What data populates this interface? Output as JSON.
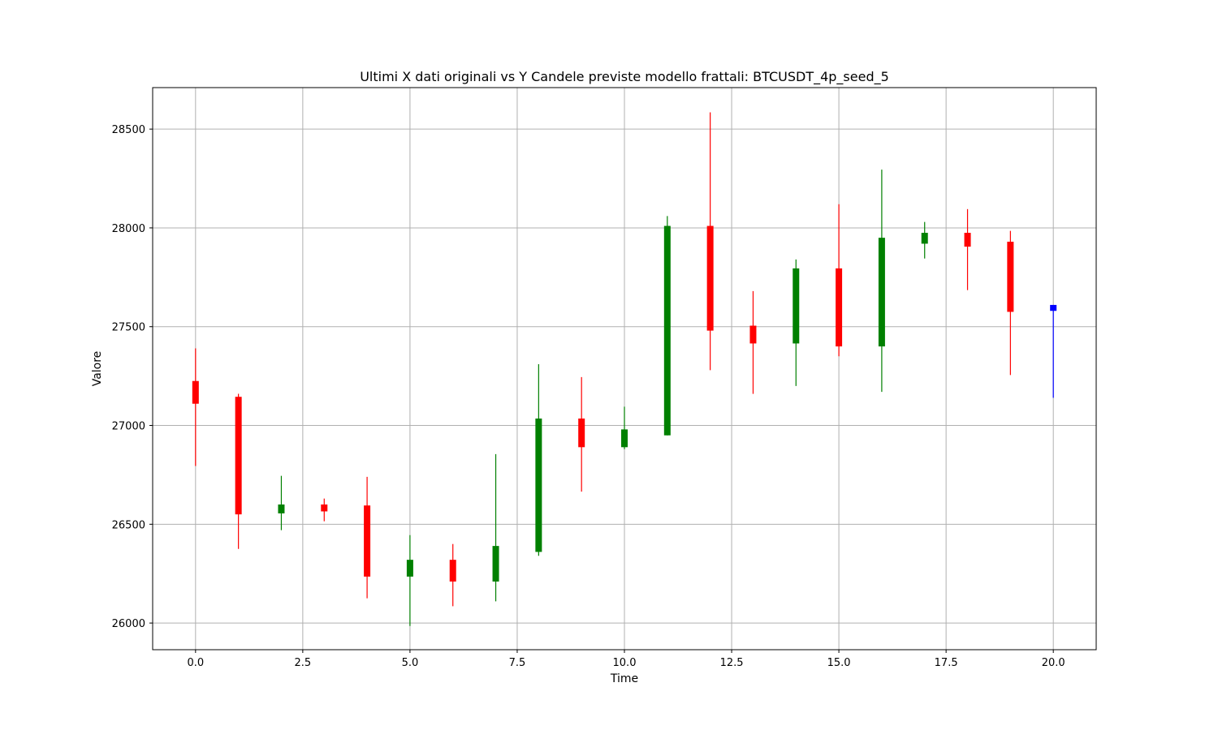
{
  "chart_data": {
    "type": "candlestick",
    "title": "Ultimi X dati originali vs Y Candele previste modello frattali: BTCUSDT_4p_seed_5",
    "xlabel": "Time",
    "ylabel": "Valore",
    "xlim": [
      -1.0,
      21.0
    ],
    "ylim": [
      25865,
      28710
    ],
    "x_ticks": [
      0.0,
      2.5,
      5.0,
      7.5,
      10.0,
      12.5,
      15.0,
      17.5,
      20.0
    ],
    "x_tick_labels": [
      "0.0",
      "2.5",
      "5.0",
      "7.5",
      "10.0",
      "12.5",
      "15.0",
      "17.5",
      "20.0"
    ],
    "y_ticks": [
      26000,
      26500,
      27000,
      27500,
      28000,
      28500
    ],
    "y_tick_labels": [
      "26000",
      "26500",
      "27000",
      "27500",
      "28000",
      "28500"
    ],
    "grid": true,
    "colors": {
      "up": "#008000",
      "down": "#ff0000",
      "forecast": "#0000ff",
      "grid": "#b0b0b0"
    },
    "candles": [
      {
        "x": 0,
        "open": 27225,
        "high": 27390,
        "low": 26795,
        "close": 27110,
        "kind": "down"
      },
      {
        "x": 1,
        "open": 27145,
        "high": 27160,
        "low": 26375,
        "close": 26550,
        "kind": "down"
      },
      {
        "x": 2,
        "open": 26555,
        "high": 26745,
        "low": 26470,
        "close": 26600,
        "kind": "up"
      },
      {
        "x": 3,
        "open": 26600,
        "high": 26630,
        "low": 26515,
        "close": 26565,
        "kind": "down"
      },
      {
        "x": 4,
        "open": 26595,
        "high": 26740,
        "low": 26125,
        "close": 26235,
        "kind": "down"
      },
      {
        "x": 5,
        "open": 26235,
        "high": 26445,
        "low": 25985,
        "close": 26320,
        "kind": "up"
      },
      {
        "x": 6,
        "open": 26320,
        "high": 26400,
        "low": 26085,
        "close": 26210,
        "kind": "down"
      },
      {
        "x": 7,
        "open": 26210,
        "high": 26855,
        "low": 26110,
        "close": 26390,
        "kind": "up"
      },
      {
        "x": 8,
        "open": 26360,
        "high": 27310,
        "low": 26340,
        "close": 27035,
        "kind": "up"
      },
      {
        "x": 9,
        "open": 27035,
        "high": 27245,
        "low": 26665,
        "close": 26890,
        "kind": "down"
      },
      {
        "x": 10,
        "open": 26890,
        "high": 27095,
        "low": 26880,
        "close": 26980,
        "kind": "up"
      },
      {
        "x": 11,
        "open": 26950,
        "high": 28060,
        "low": 26950,
        "close": 28010,
        "kind": "up"
      },
      {
        "x": 12,
        "open": 28010,
        "high": 28585,
        "low": 27280,
        "close": 27480,
        "kind": "down"
      },
      {
        "x": 13,
        "open": 27505,
        "high": 27680,
        "low": 27160,
        "close": 27415,
        "kind": "down"
      },
      {
        "x": 14,
        "open": 27415,
        "high": 27840,
        "low": 27200,
        "close": 27795,
        "kind": "up"
      },
      {
        "x": 15,
        "open": 27795,
        "high": 28120,
        "low": 27350,
        "close": 27400,
        "kind": "down"
      },
      {
        "x": 16,
        "open": 27400,
        "high": 28295,
        "low": 27170,
        "close": 27950,
        "kind": "up"
      },
      {
        "x": 17,
        "open": 27920,
        "high": 28030,
        "low": 27845,
        "close": 27975,
        "kind": "up"
      },
      {
        "x": 18,
        "open": 27975,
        "high": 28095,
        "low": 27685,
        "close": 27905,
        "kind": "down"
      },
      {
        "x": 19,
        "open": 27930,
        "high": 27985,
        "low": 27255,
        "close": 27575,
        "kind": "down"
      },
      {
        "x": 20,
        "open": 27610,
        "high": 27610,
        "low": 27140,
        "close": 27580,
        "kind": "forecast"
      }
    ]
  }
}
